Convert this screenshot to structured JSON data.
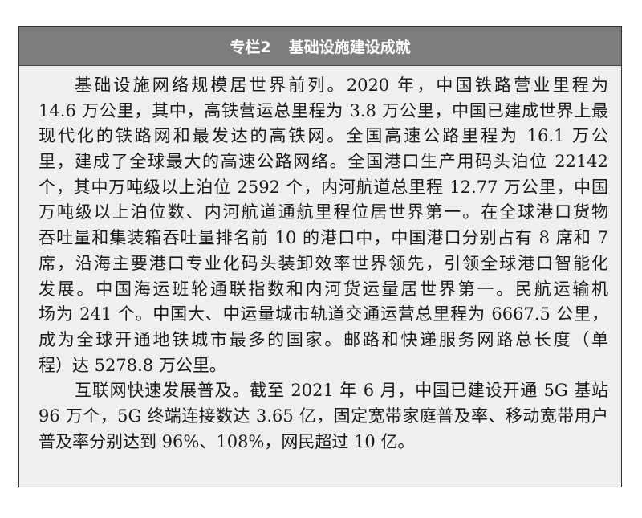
{
  "box": {
    "label": "专栏2",
    "title": "基础设施建设成就"
  },
  "paragraphs": [
    {
      "lines": [
        "基础设施网络规模居世界前列。2020 年，中国铁路营业里程为",
        "14.6 万公里，其中，高铁营运总里程为 3.8 万公里，中国已建成世界上最",
        "现代化的铁路网和最发达的高铁网。全国高速公路里程为 16.1 万公",
        "里，建成了全球最大的高速公路网络。全国港口生产用码头泊位 22142",
        "个，其中万吨级以上泊位 2592 个，内河航道总里程 12.77 万公里，中国",
        "万吨级以上泊位数、内河航道通航里程位居世界第一。在全球港口货物",
        "吞吐量和集装箱吞吐量排名前 10 的港口中，中国港口分别占有 8 席和 7",
        "席，沿海主要港口专业化码头装卸效率世界领先，引领全球港口智能化",
        "发展。中国海运班轮通联指数和内河货运量居世界第一。民航运输机",
        "场为 241 个。中国大、中运量城市轨道交通运营总里程为 6667.5 公里，",
        "成为全球开通地铁城市最多的国家。邮路和快递服务网路总长度（单",
        "程）达 5278.8 万公里。"
      ]
    },
    {
      "lines": [
        "互联网快速发展普及。截至 2021 年 6 月，中国已建设开通 5G 基站",
        "96 万个，5G 终端连接数达 3.65 亿，固定宽带家庭普及率、移动宽带用户",
        "普及率分别达到 96%、108%，网民超过 10 亿。"
      ]
    }
  ]
}
